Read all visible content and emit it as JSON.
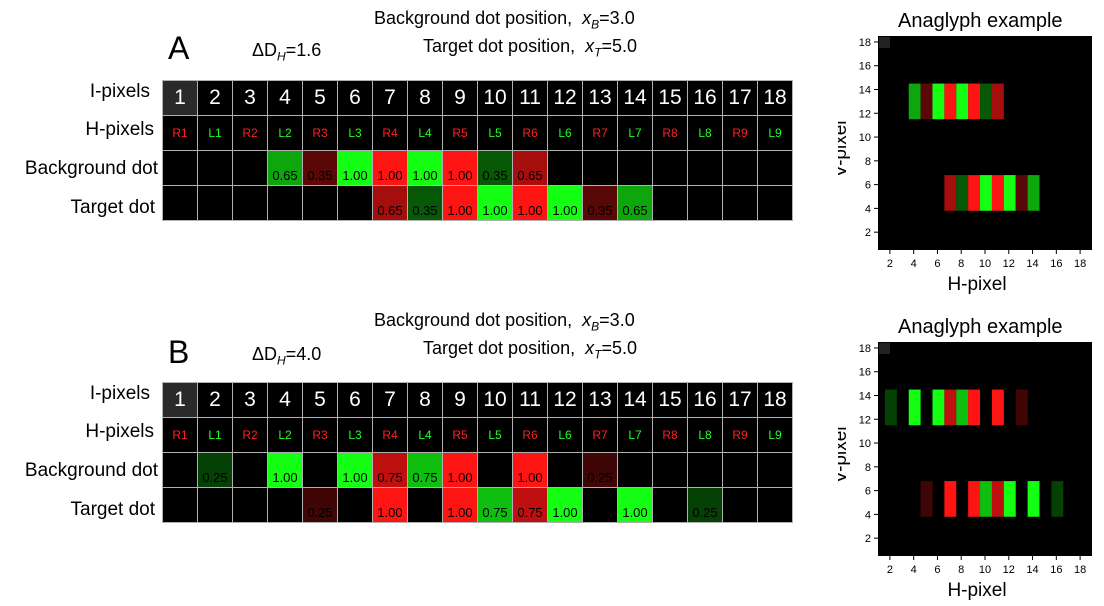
{
  "colors": {
    "red": "#ff2020",
    "green": "#20ff20",
    "black": "#000000"
  },
  "row_labels": {
    "ipixels": "I-pixels",
    "hpixels": "H-pixels",
    "background": "Background dot",
    "target": "Target dot"
  },
  "ipixels": [
    "1",
    "2",
    "3",
    "4",
    "5",
    "6",
    "7",
    "8",
    "9",
    "10",
    "11",
    "12",
    "13",
    "14",
    "15",
    "16",
    "17",
    "18"
  ],
  "hpixels": [
    "R1",
    "L1",
    "R2",
    "L2",
    "R3",
    "L3",
    "R4",
    "L4",
    "R5",
    "L5",
    "R6",
    "L6",
    "R7",
    "L7",
    "R8",
    "L8",
    "R9",
    "L9"
  ],
  "panels": [
    {
      "letter": "A",
      "delta_prefix": "ΔD",
      "delta_sub": "H",
      "delta_value": "=1.6",
      "bg_text": "Background dot position,",
      "bg_var": "x",
      "bg_sub": "B",
      "bg_value": "=3.0",
      "tg_text": "Target dot position,",
      "tg_var": "x",
      "tg_sub": "T",
      "tg_value": "=5.0",
      "background": [
        "",
        "",
        "",
        "0.65",
        "0.35",
        "1.00",
        "1.00",
        "1.00",
        "1.00",
        "0.35",
        "0.65",
        "",
        "",
        "",
        "",
        "",
        "",
        ""
      ],
      "target": [
        "",
        "",
        "",
        "",
        "",
        "",
        "0.65",
        "0.35",
        "1.00",
        "1.00",
        "1.00",
        "1.00",
        "0.35",
        "0.65",
        "",
        "",
        "",
        ""
      ]
    },
    {
      "letter": "B",
      "delta_prefix": "ΔD",
      "delta_sub": "H",
      "delta_value": "=4.0",
      "bg_text": "Background dot position,",
      "bg_var": "x",
      "bg_sub": "B",
      "bg_value": "=3.0",
      "tg_text": "Target dot position,",
      "tg_var": "x",
      "tg_sub": "T",
      "tg_value": "=5.0",
      "background": [
        "",
        "0.25",
        "",
        "1.00",
        "",
        "1.00",
        "0.75",
        "0.75",
        "1.00",
        "",
        "1.00",
        "",
        "0.25",
        "",
        "",
        "",
        "",
        ""
      ],
      "target": [
        "",
        "",
        "",
        "",
        "0.25",
        "",
        "1.00",
        "",
        "1.00",
        "0.75",
        "0.75",
        "1.00",
        "",
        "1.00",
        "",
        "0.25",
        "",
        ""
      ]
    }
  ],
  "anaglyph": {
    "title": "Anaglyph example",
    "xlabel": "H-pixel",
    "ylabel": "V-pixel",
    "xticks": [
      "2",
      "4",
      "6",
      "8",
      "10",
      "12",
      "14",
      "16",
      "18"
    ],
    "yticks": [
      "2",
      "4",
      "6",
      "8",
      "10",
      "12",
      "14",
      "16",
      "18"
    ]
  }
}
